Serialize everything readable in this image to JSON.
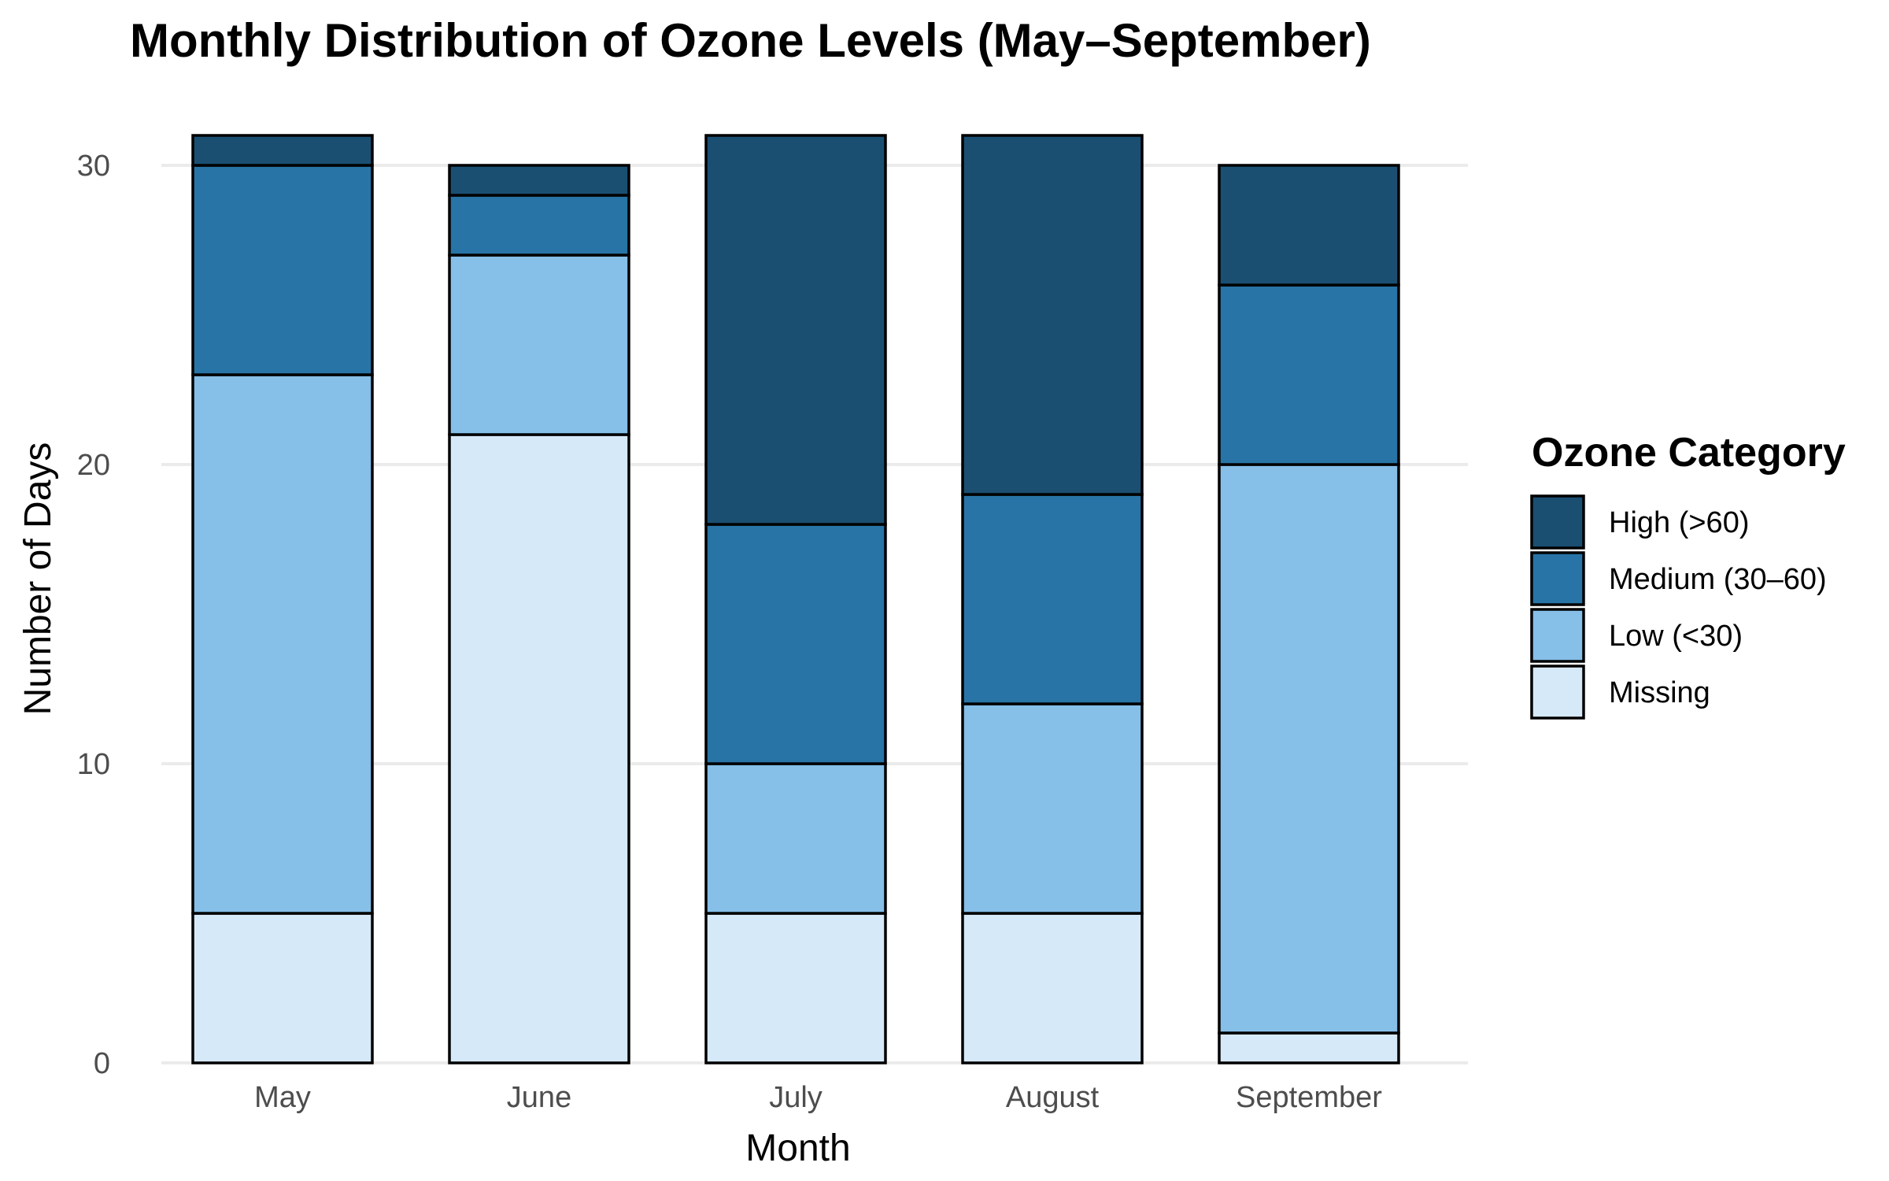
{
  "chart_data": {
    "type": "bar",
    "stacked": true,
    "title": "Monthly Distribution of Ozone Levels (May–September)",
    "xlabel": "Month",
    "ylabel": "Number of Days",
    "ylim": [
      0,
      31
    ],
    "yticks": [
      0,
      10,
      20,
      30
    ],
    "grid": "horizontal",
    "legend_title": "Ozone Category",
    "legend_position": "right",
    "categories": [
      "May",
      "June",
      "July",
      "August",
      "September"
    ],
    "series": [
      {
        "name": "Missing",
        "color": "#d6e9f8",
        "values": [
          5,
          21,
          5,
          5,
          1
        ]
      },
      {
        "name": "Low (<30)",
        "color": "#86bfe8",
        "values": [
          18,
          6,
          5,
          7,
          19
        ]
      },
      {
        "name": "Medium (30–60)",
        "color": "#2874a6",
        "values": [
          7,
          2,
          8,
          7,
          6
        ]
      },
      {
        "name": "High (>60)",
        "color": "#1b4f72",
        "values": [
          1,
          1,
          13,
          12,
          4
        ]
      }
    ],
    "legend_order": [
      "High (>60)",
      "Medium (30–60)",
      "Low (<30)",
      "Missing"
    ]
  }
}
